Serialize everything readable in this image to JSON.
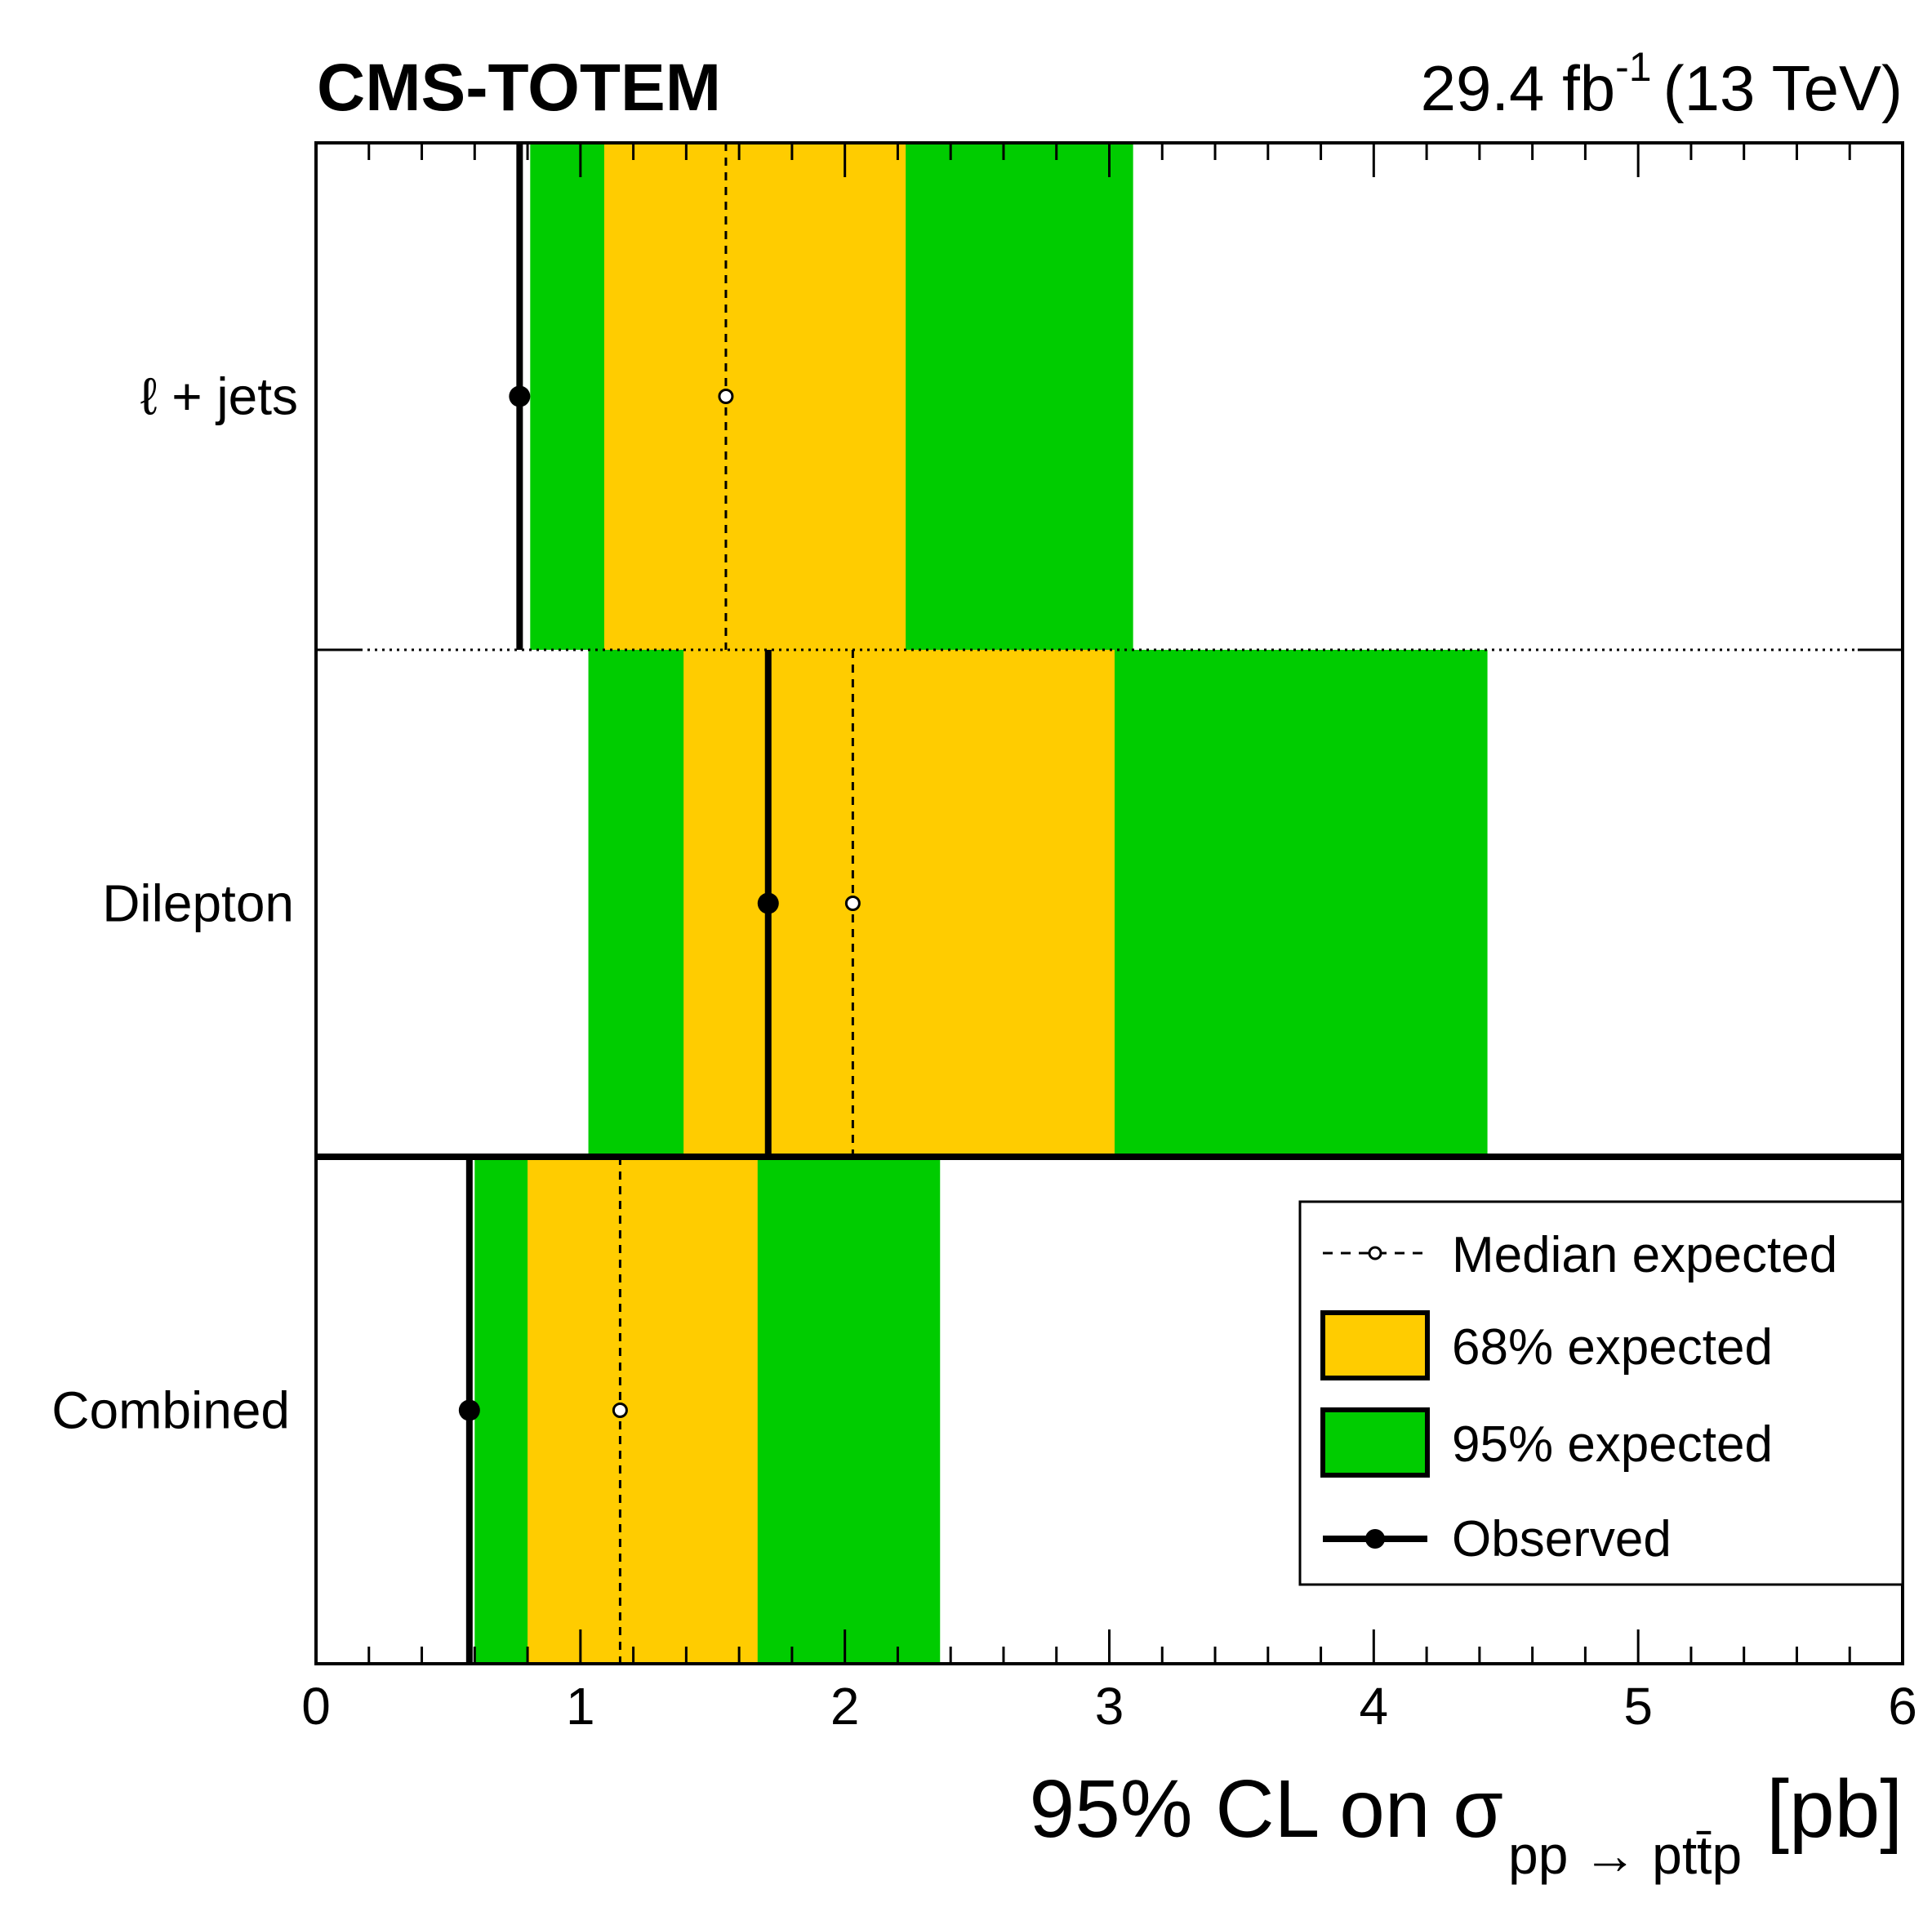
{
  "header": {
    "experiment": "CMS-TOTEM",
    "luminosity_value": "29.4 fb",
    "luminosity_exponent": "-1",
    "energy": "(13 TeV)"
  },
  "chart_data": {
    "type": "limit-bands",
    "xlabel_main": "95% CL on σ",
    "xlabel_sub": "pp → ptt̄p",
    "xlabel_unit": "[pb]",
    "xlim": [
      0,
      6
    ],
    "x_ticks": [
      "0",
      "1",
      "2",
      "3",
      "4",
      "5",
      "6"
    ],
    "channels": [
      {
        "name": "ℓ + jets",
        "observed": 0.77,
        "expected": 1.55,
        "band68": [
          1.09,
          2.23
        ],
        "band95": [
          0.81,
          3.09
        ]
      },
      {
        "name": "Dilepton",
        "observed": 1.71,
        "expected": 2.03,
        "band68": [
          1.39,
          3.02
        ],
        "band95": [
          1.03,
          4.43
        ]
      },
      {
        "name": "Combined",
        "observed": 0.58,
        "expected": 1.15,
        "band68": [
          0.8,
          1.67
        ],
        "band95": [
          0.6,
          2.36
        ]
      }
    ],
    "legend": {
      "position": "bottom-right",
      "entries": [
        {
          "label": "Median expected",
          "kind": "median"
        },
        {
          "label": "68% expected",
          "kind": "band68"
        },
        {
          "label": "95% expected",
          "kind": "band95"
        },
        {
          "label": "Observed",
          "kind": "observed"
        }
      ]
    },
    "colors": {
      "band68": "#ffcc00",
      "band95": "#00cc00",
      "line": "#000000"
    }
  }
}
